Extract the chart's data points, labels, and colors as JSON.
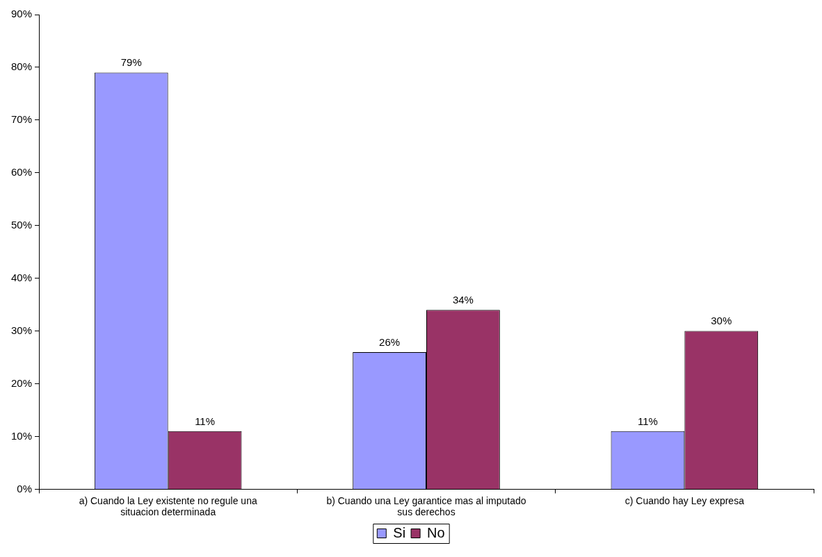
{
  "chart_data": {
    "type": "bar",
    "categories": [
      "a) Cuando la Ley existente no regule una situacion determinada",
      "b) Cuando una Ley garantice mas al imputado sus derechos",
      "c) Cuando hay Ley expresa"
    ],
    "series": [
      {
        "name": "Si",
        "color": "#9999ff",
        "values": [
          79,
          26,
          11
        ],
        "value_labels": [
          "79%",
          "26%",
          "11%"
        ]
      },
      {
        "name": "No",
        "color": "#993366",
        "values": [
          11,
          34,
          30
        ],
        "value_labels": [
          "11%",
          "34%",
          "30%"
        ]
      }
    ],
    "ylim": [
      0,
      90
    ],
    "yticks": [
      {
        "value": 0,
        "label": "0%"
      },
      {
        "value": 10,
        "label": "10%"
      },
      {
        "value": 20,
        "label": "20%"
      },
      {
        "value": 30,
        "label": "30%"
      },
      {
        "value": 40,
        "label": "40%"
      },
      {
        "value": 50,
        "label": "50%"
      },
      {
        "value": 60,
        "label": "60%"
      },
      {
        "value": 70,
        "label": "70%"
      },
      {
        "value": 80,
        "label": "80%"
      },
      {
        "value": 90,
        "label": "90%"
      }
    ],
    "grid": false,
    "legend": "bottom"
  }
}
